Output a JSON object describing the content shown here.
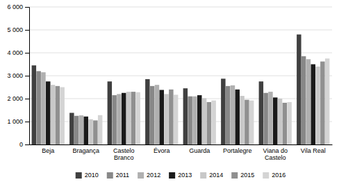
{
  "chart_data": {
    "type": "bar",
    "categories": [
      "Beja",
      "Bragança",
      "Castelo\nBranco",
      "Évora",
      "Guarda",
      "Portalegre",
      "Viana do\nCastelo",
      "Vila Real"
    ],
    "series": [
      {
        "name": "2010",
        "color": "#404040",
        "values": [
          3450,
          1380,
          2750,
          2850,
          2450,
          2870,
          2750,
          4800
        ]
      },
      {
        "name": "2011",
        "color": "#888888",
        "values": [
          3200,
          1250,
          2150,
          2550,
          2100,
          2550,
          2250,
          3850
        ]
      },
      {
        "name": "2012",
        "color": "#b0b0b0",
        "values": [
          3150,
          1270,
          2200,
          2600,
          2100,
          2580,
          2300,
          3720
        ]
      },
      {
        "name": "2013",
        "color": "#1a1a1a",
        "values": [
          2750,
          1220,
          2250,
          2380,
          2150,
          2400,
          2050,
          3500
        ]
      },
      {
        "name": "2014",
        "color": "#c8c8c8",
        "values": [
          2600,
          1100,
          2300,
          2200,
          2020,
          2120,
          2000,
          3400
        ]
      },
      {
        "name": "2015",
        "color": "#909090",
        "values": [
          2550,
          1050,
          2300,
          2400,
          1850,
          1950,
          1820,
          3620
        ]
      },
      {
        "name": "2016",
        "color": "#d4d4d4",
        "values": [
          2500,
          1280,
          2280,
          2170,
          1920,
          1920,
          1850,
          3750
        ]
      }
    ],
    "ylim": [
      0,
      6000
    ],
    "yticks": [
      0,
      {
        "value": 1000,
        "label": "1 000"
      },
      {
        "value": 2000,
        "label": "2 000"
      },
      {
        "value": 3000,
        "label": "3 000"
      },
      {
        "value": 4000,
        "label": "4 000"
      },
      {
        "value": 5000,
        "label": "5 000"
      },
      {
        "value": 6000,
        "label": "6 000"
      }
    ],
    "grid": true,
    "legend": "bottom"
  }
}
